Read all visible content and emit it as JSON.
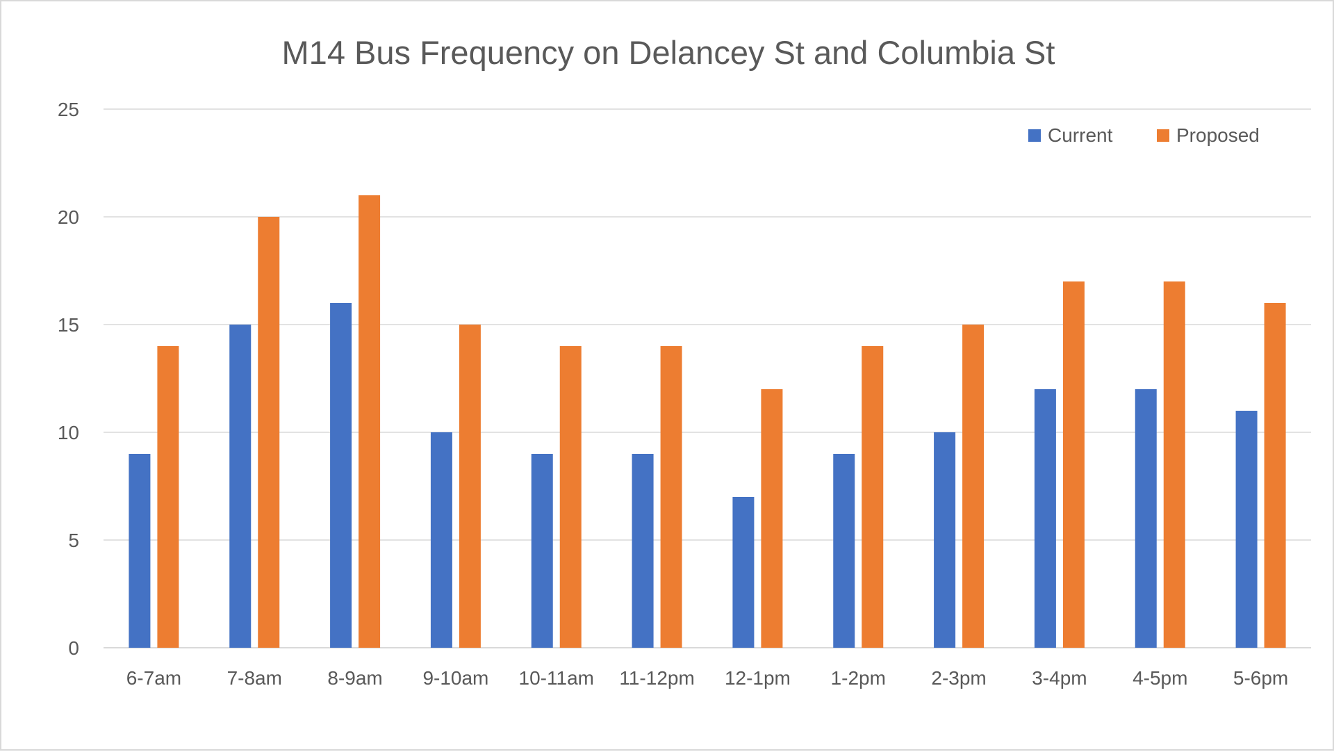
{
  "chart_data": {
    "type": "bar",
    "title": "M14 Bus Frequency on Delancey St and Columbia St",
    "xlabel": "",
    "ylabel": "",
    "categories": [
      "6-7am",
      "7-8am",
      "8-9am",
      "9-10am",
      "10-11am",
      "11-12pm",
      "12-1pm",
      "1-2pm",
      "2-3pm",
      "3-4pm",
      "4-5pm",
      "5-6pm"
    ],
    "series": [
      {
        "name": "Current",
        "color": "#4472c4",
        "values": [
          9,
          15,
          16,
          10,
          9,
          9,
          7,
          9,
          10,
          12,
          12,
          11
        ]
      },
      {
        "name": "Proposed",
        "color": "#ed7d31",
        "values": [
          14,
          20,
          21,
          15,
          14,
          14,
          12,
          14,
          15,
          17,
          17,
          16
        ]
      }
    ],
    "ylim": [
      0,
      25
    ],
    "yticks": [
      0,
      5,
      10,
      15,
      20,
      25
    ],
    "grid": true,
    "legend_position": "top-right"
  }
}
